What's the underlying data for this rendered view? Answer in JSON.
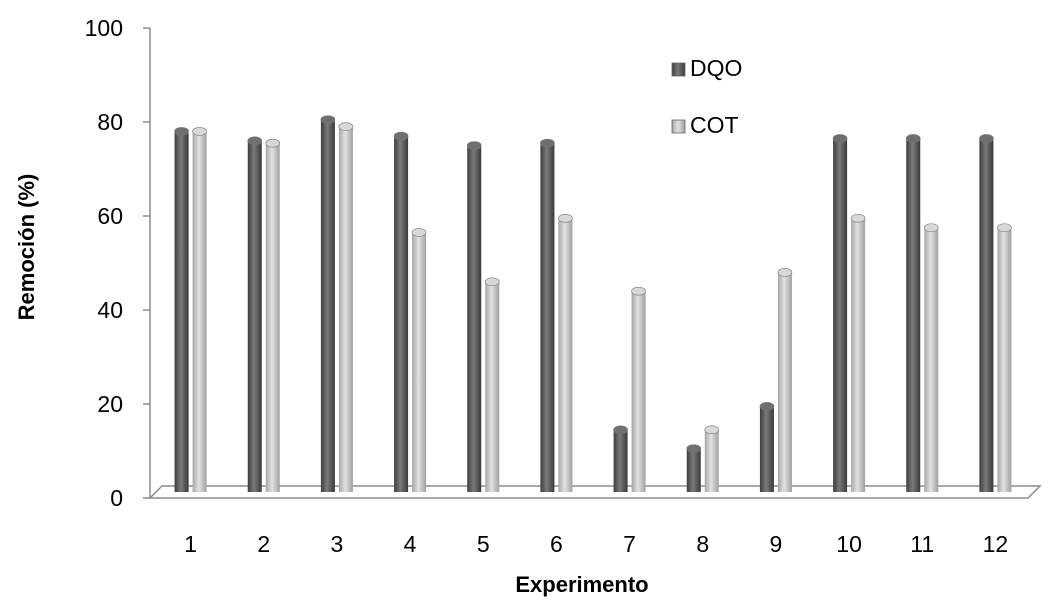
{
  "chart_data": {
    "type": "bar",
    "categories": [
      "1",
      "2",
      "3",
      "4",
      "5",
      "6",
      "7",
      "8",
      "9",
      "10",
      "11",
      "12"
    ],
    "series": [
      {
        "name": "DQO",
        "values": [
          78,
          76,
          80.5,
          77,
          75,
          75.5,
          14.5,
          10.5,
          19.5,
          76.5,
          76.5,
          76.5
        ],
        "color": "#5a5a5a"
      },
      {
        "name": "COT",
        "values": [
          78,
          75.5,
          79,
          56.5,
          46,
          59.5,
          44,
          14.5,
          48,
          59.5,
          57.5,
          57.5
        ],
        "color": "#c2c2c2"
      }
    ],
    "xlabel": "Experimento",
    "ylabel": "Remoción (%)",
    "ylim": [
      0,
      100
    ],
    "yticks": [
      "0",
      "20",
      "40",
      "60",
      "80",
      "100"
    ],
    "grid": false,
    "legend": "top-right"
  }
}
